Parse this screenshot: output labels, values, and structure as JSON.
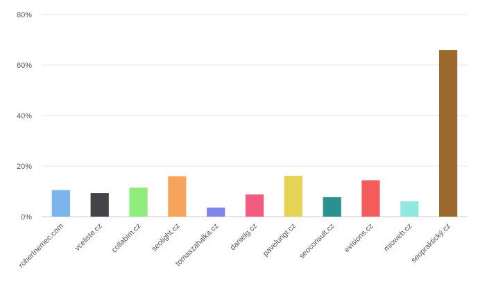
{
  "chart_data": {
    "type": "bar",
    "categories": [
      "robertnemec.com",
      "vceliste.cz",
      "collabim.cz",
      "seolight.cz",
      "tomaszahalka.cz",
      "danielg.cz",
      "pavelungr.cz",
      "seoconsult.cz",
      "evisions.cz",
      "mioweb.cz",
      "seopraktický.cz"
    ],
    "values": [
      10.5,
      9.3,
      11.5,
      16.0,
      3.6,
      8.8,
      16.2,
      7.7,
      14.4,
      6.1,
      66.0
    ],
    "colors": [
      "#7cb5ec",
      "#434348",
      "#90ed7d",
      "#f7a35c",
      "#8085e9",
      "#f15c80",
      "#e4d354",
      "#2b908f",
      "#f45b5b",
      "#91e8e1",
      "#9c6a2e"
    ],
    "y_ticks": [
      "0%",
      "20%",
      "40%",
      "60%",
      "80%"
    ],
    "ylim": [
      0,
      80
    ],
    "grid": true,
    "legend": "none"
  }
}
